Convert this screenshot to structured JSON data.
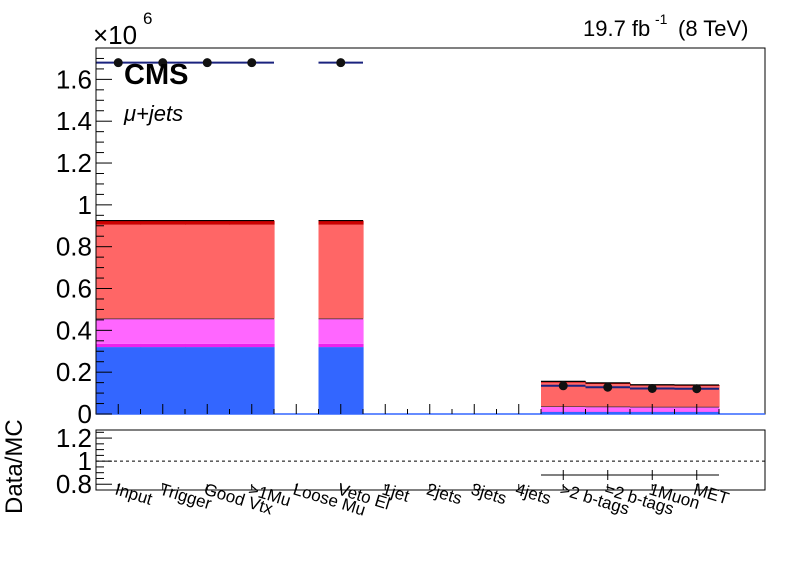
{
  "chart_data": {
    "type": "bar",
    "stacked": true,
    "yscale_label": "×10",
    "yscale_exponent": "6",
    "lumi_text": "19.7 fb",
    "lumi_superscript": "-1",
    "energy_text": "(8 TeV)",
    "experiment_label": "CMS",
    "channel_label": "μ+jets",
    "categories": [
      "Input",
      "Trigger",
      "Good Vtx",
      ">1Mu",
      "Loose Mu",
      "Veto El",
      "1jet",
      "2jets",
      "3jets",
      "4jets",
      ">2 b-tags",
      "=2 b-tags",
      "1Muon",
      "MET"
    ],
    "ylim": [
      0,
      1.75
    ],
    "yticks": [
      "0",
      "0.2",
      "0.4",
      "0.6",
      "0.8",
      "1",
      "1.2",
      "1.4",
      "1.6"
    ],
    "series": [
      {
        "color": "#3366ff",
        "values": [
          0.32,
          0.32,
          0.32,
          0.32,
          0,
          0.32,
          0,
          0,
          0,
          0,
          0.01,
          0.01,
          0.01,
          0.01
        ]
      },
      {
        "color": "#ee22ee",
        "values": [
          0.015,
          0.015,
          0.015,
          0.015,
          0,
          0.015,
          0,
          0,
          0,
          0,
          0.003,
          0.003,
          0.003,
          0.003
        ]
      },
      {
        "color": "#ff66ff",
        "values": [
          0.12,
          0.12,
          0.12,
          0.12,
          0,
          0.12,
          0,
          0,
          0,
          0,
          0.022,
          0.021,
          0.02,
          0.02
        ]
      },
      {
        "color": "#ff6666",
        "values": [
          0.45,
          0.45,
          0.45,
          0.45,
          0,
          0.45,
          0,
          0,
          0,
          0,
          0.115,
          0.109,
          0.102,
          0.101
        ]
      },
      {
        "color": "#cc0000",
        "values": [
          0.02,
          0.02,
          0.02,
          0.02,
          0,
          0.02,
          0,
          0,
          0,
          0,
          0.006,
          0.006,
          0.005,
          0.005
        ]
      }
    ],
    "data_points": [
      1.68,
      1.68,
      1.68,
      1.68,
      null,
      1.68,
      null,
      null,
      null,
      null,
      0.135,
      0.128,
      0.122,
      0.121
    ],
    "ratio_ylabel": "Data/MC",
    "ratio_ylim": [
      0.75,
      1.27
    ],
    "ratio_yticks": [
      "0.8",
      "1",
      "1.2"
    ],
    "ratio_values": [
      null,
      null,
      null,
      null,
      null,
      null,
      null,
      null,
      null,
      null,
      0.88,
      0.88,
      0.88,
      0.88
    ],
    "ratio_reference": 1
  }
}
